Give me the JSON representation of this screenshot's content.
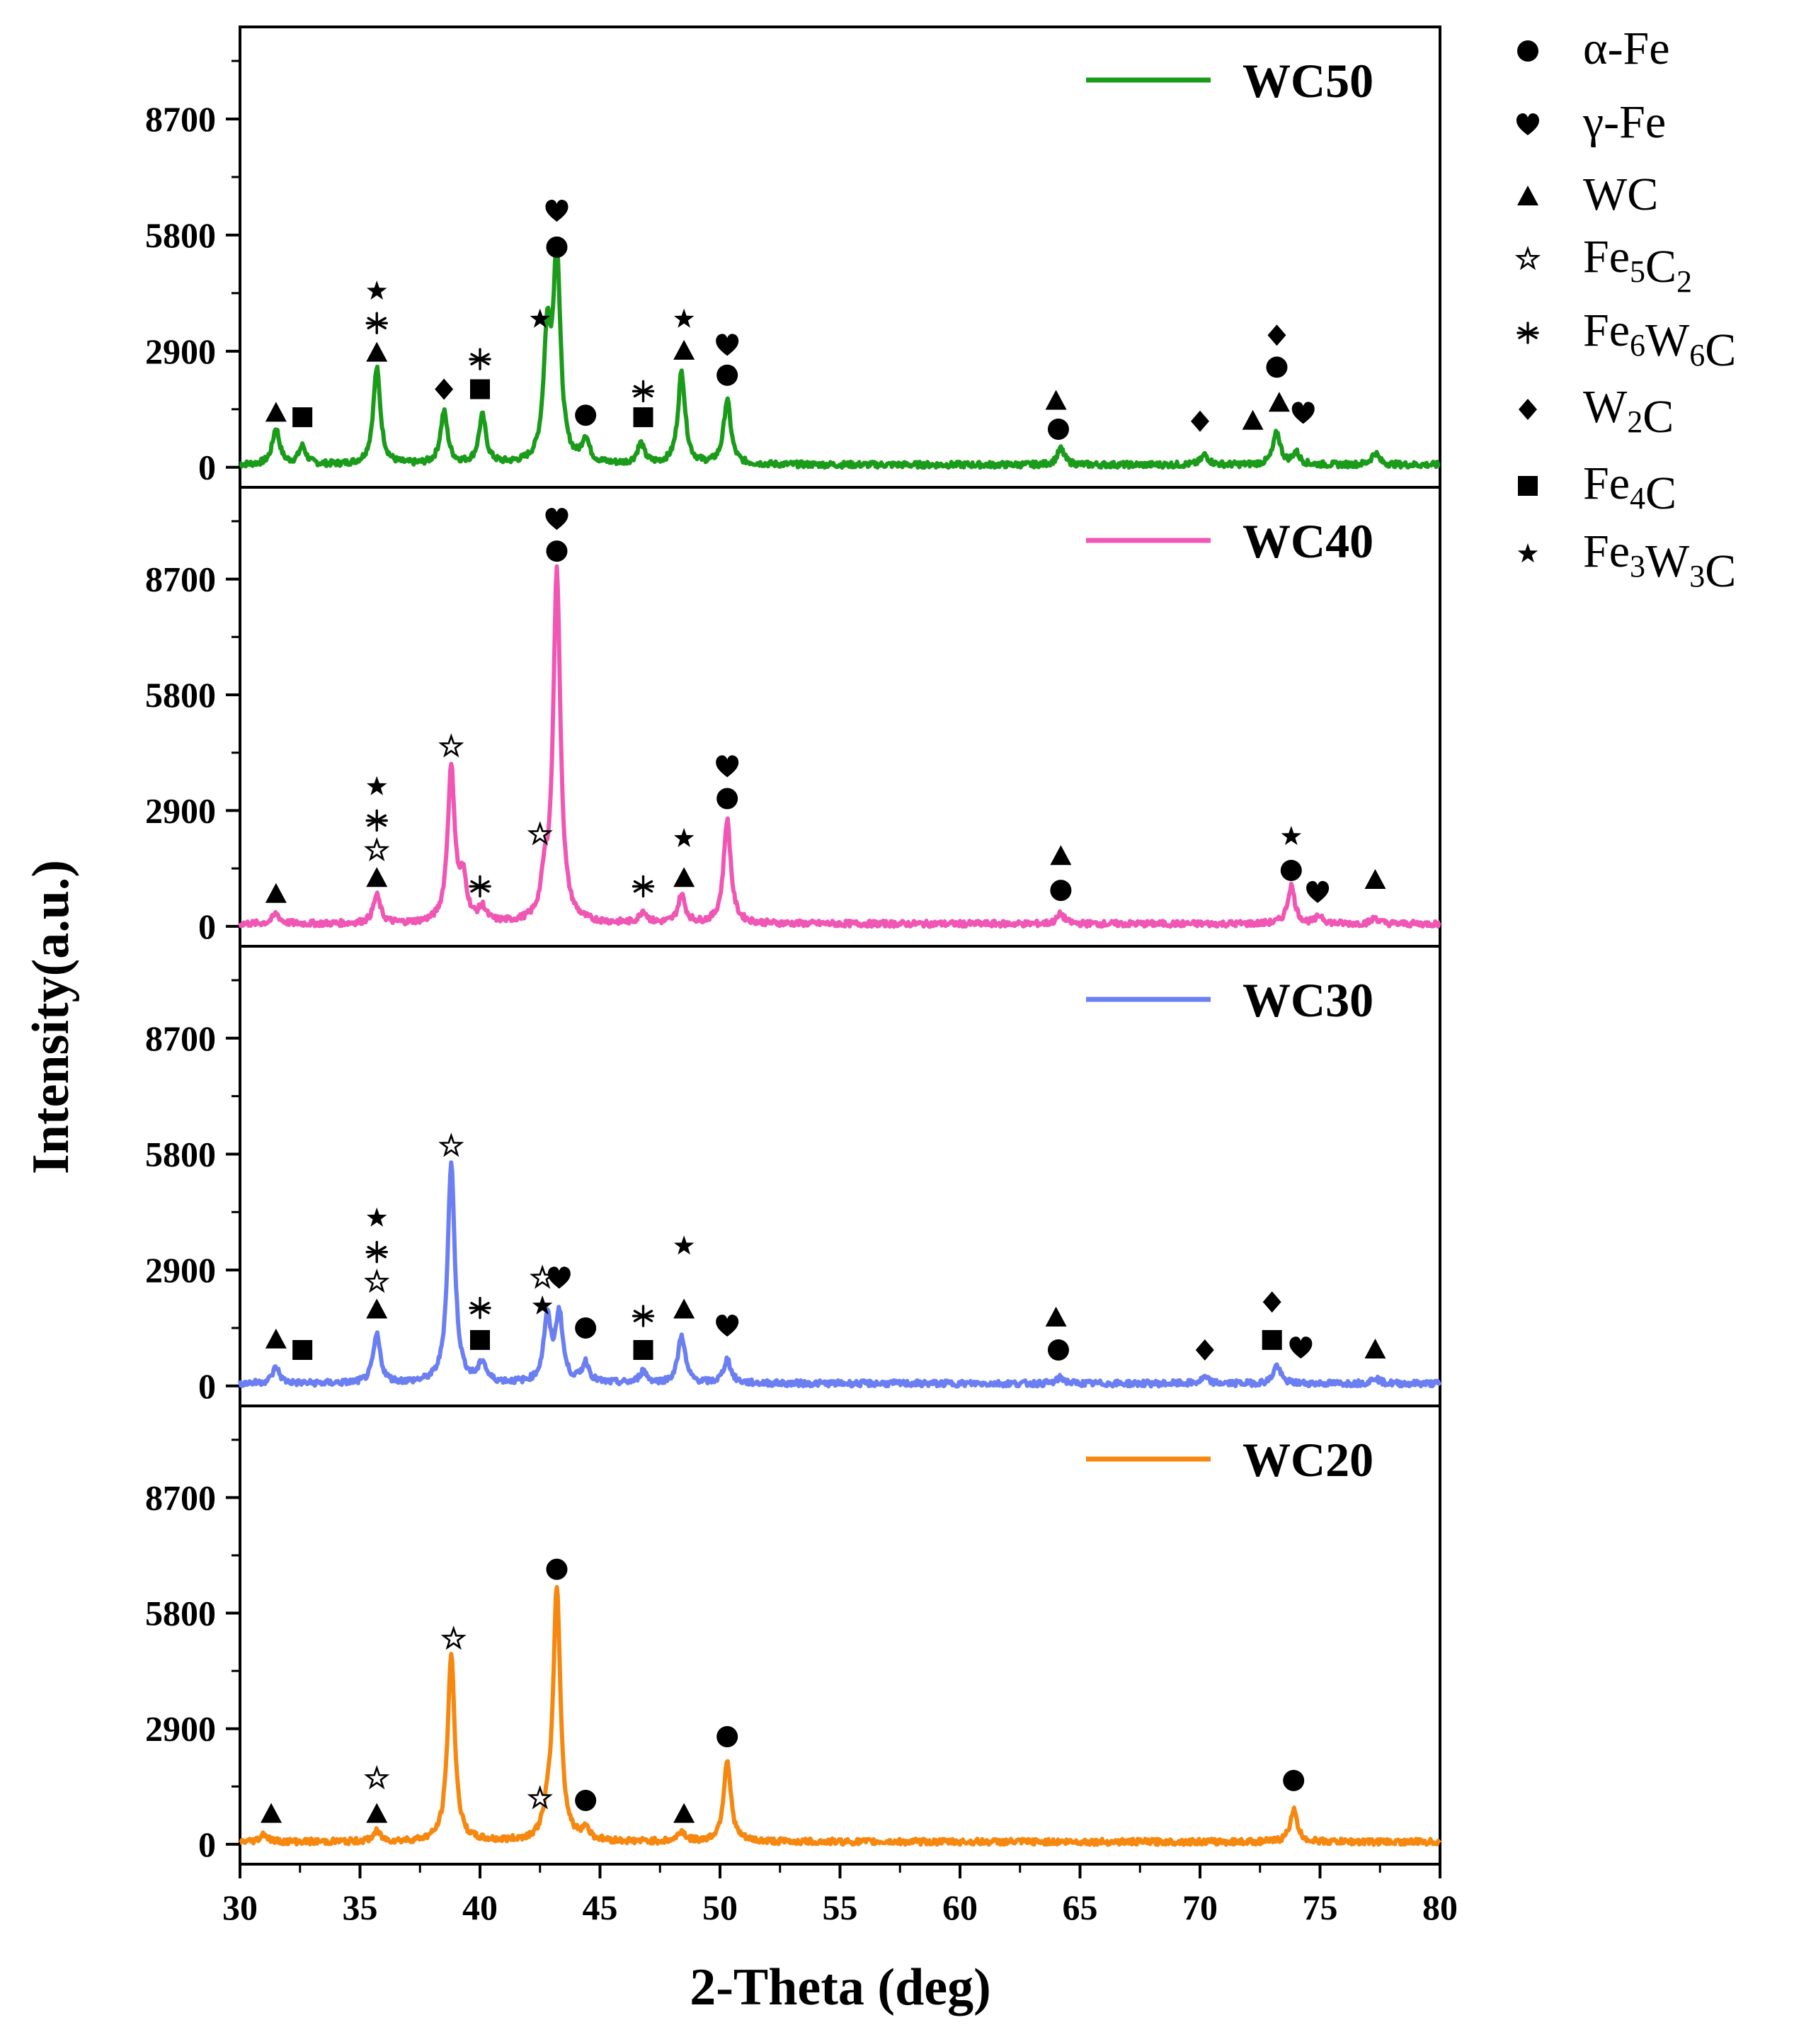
{
  "chart_data": {
    "type": "line",
    "xlabel": "2-Theta (deg)",
    "ylabel": "Intensity(a.u.)",
    "xlim": [
      30,
      80
    ],
    "x_ticks": [
      30,
      35,
      40,
      45,
      50,
      55,
      60,
      65,
      70,
      75,
      80
    ],
    "x_tick_labels": [
      "30",
      "35",
      "40",
      "45",
      "50",
      "55",
      "60",
      "65",
      "70",
      "75",
      "80"
    ],
    "ylim": [
      -500,
      11000
    ],
    "y_ticks": [
      0,
      2900,
      5800,
      8700
    ],
    "y_tick_labels": [
      "0",
      "2900",
      "5800",
      "8700"
    ],
    "phase_legend": [
      {
        "symbol": "circle",
        "base": "α-Fe",
        "sub": "",
        "tail": ""
      },
      {
        "symbol": "heart",
        "base": "γ-Fe",
        "sub": "",
        "tail": ""
      },
      {
        "symbol": "triangle",
        "base": "WC",
        "sub": "",
        "tail": ""
      },
      {
        "symbol": "star-open",
        "base": "Fe",
        "sub": "5",
        "tail": "C",
        "sub2": "2"
      },
      {
        "symbol": "asterisk",
        "base": "Fe",
        "sub": "6",
        "tail": "W",
        "sub2": "6",
        "tail2": "C"
      },
      {
        "symbol": "diamond",
        "base": "W",
        "sub": "2",
        "tail": "C"
      },
      {
        "symbol": "square",
        "base": "Fe",
        "sub": "4",
        "tail": "C"
      },
      {
        "symbol": "star-filled",
        "base": "Fe",
        "sub": "3",
        "tail": "W",
        "sub2": "3",
        "tail2": "C"
      }
    ],
    "panels": [
      {
        "name": "WC50",
        "color": "#1a9b1a",
        "baseline": 60,
        "peaks": [
          [
            31.5,
            900
          ],
          [
            32.6,
            450
          ],
          [
            35.7,
            2400
          ],
          [
            38.5,
            1300
          ],
          [
            40.1,
            1200
          ],
          [
            42.8,
            3000
          ],
          [
            43.2,
            5100
          ],
          [
            44.4,
            600
          ],
          [
            46.7,
            500
          ],
          [
            48.4,
            2300
          ],
          [
            50.3,
            1600
          ],
          [
            64.2,
            400
          ],
          [
            70.2,
            250
          ],
          [
            73.2,
            800
          ],
          [
            74.0,
            300
          ],
          [
            77.3,
            300
          ]
        ],
        "markers": [
          {
            "x": 31.5,
            "s": "triangle",
            "i": 1350
          },
          {
            "x": 32.6,
            "s": "square",
            "i": 1250
          },
          {
            "x": 35.7,
            "s": "triangle",
            "i": 2850
          },
          {
            "x": 35.7,
            "s": "asterisk",
            "i": 3600
          },
          {
            "x": 35.7,
            "s": "star-filled",
            "i": 4400
          },
          {
            "x": 38.5,
            "s": "diamond",
            "i": 1950
          },
          {
            "x": 40.0,
            "s": "square",
            "i": 1950
          },
          {
            "x": 40.0,
            "s": "asterisk",
            "i": 2700
          },
          {
            "x": 42.5,
            "s": "star-filled",
            "i": 3700
          },
          {
            "x": 43.2,
            "s": "circle",
            "i": 5500
          },
          {
            "x": 43.2,
            "s": "heart",
            "i": 6400
          },
          {
            "x": 44.4,
            "s": "circle",
            "i": 1300
          },
          {
            "x": 46.8,
            "s": "square",
            "i": 1250
          },
          {
            "x": 46.8,
            "s": "asterisk",
            "i": 1900
          },
          {
            "x": 48.5,
            "s": "triangle",
            "i": 2900
          },
          {
            "x": 48.5,
            "s": "star-filled",
            "i": 3700
          },
          {
            "x": 50.3,
            "s": "circle",
            "i": 2300
          },
          {
            "x": 50.3,
            "s": "heart",
            "i": 3050
          },
          {
            "x": 64.0,
            "s": "triangle",
            "i": 1650
          },
          {
            "x": 64.1,
            "s": "circle",
            "i": 950
          },
          {
            "x": 70.0,
            "s": "diamond",
            "i": 1150
          },
          {
            "x": 72.2,
            "s": "triangle",
            "i": 1150
          },
          {
            "x": 73.2,
            "s": "circle",
            "i": 2500
          },
          {
            "x": 73.2,
            "s": "diamond",
            "i": 3300
          },
          {
            "x": 73.3,
            "s": "triangle",
            "i": 1600
          },
          {
            "x": 74.3,
            "s": "heart",
            "i": 1350
          }
        ]
      },
      {
        "name": "WC40",
        "color": "#f056b4",
        "baseline": 60,
        "peaks": [
          [
            31.5,
            250
          ],
          [
            35.7,
            700
          ],
          [
            38.8,
            3850
          ],
          [
            39.3,
            1000
          ],
          [
            40.1,
            350
          ],
          [
            42.7,
            900
          ],
          [
            43.2,
            8800
          ],
          [
            46.8,
            300
          ],
          [
            48.4,
            700
          ],
          [
            50.3,
            2600
          ],
          [
            64.2,
            250
          ],
          [
            73.8,
            950
          ],
          [
            75.0,
            200
          ],
          [
            77.3,
            150
          ]
        ],
        "markers": [
          {
            "x": 31.5,
            "s": "triangle",
            "i": 800
          },
          {
            "x": 35.7,
            "s": "triangle",
            "i": 1200
          },
          {
            "x": 35.7,
            "s": "star-open",
            "i": 1900
          },
          {
            "x": 35.7,
            "s": "asterisk",
            "i": 2650
          },
          {
            "x": 35.7,
            "s": "star-filled",
            "i": 3500
          },
          {
            "x": 38.8,
            "s": "star-open",
            "i": 4500
          },
          {
            "x": 40.0,
            "s": "asterisk",
            "i": 1000
          },
          {
            "x": 42.5,
            "s": "star-open",
            "i": 2300
          },
          {
            "x": 43.2,
            "s": "circle",
            "i": 9400
          },
          {
            "x": 43.2,
            "s": "heart",
            "i": 10200
          },
          {
            "x": 46.8,
            "s": "asterisk",
            "i": 1000
          },
          {
            "x": 48.5,
            "s": "triangle",
            "i": 1200
          },
          {
            "x": 48.5,
            "s": "star-filled",
            "i": 2200
          },
          {
            "x": 50.3,
            "s": "circle",
            "i": 3200
          },
          {
            "x": 50.3,
            "s": "heart",
            "i": 4000
          },
          {
            "x": 64.2,
            "s": "circle",
            "i": 900
          },
          {
            "x": 64.2,
            "s": "triangle",
            "i": 1750
          },
          {
            "x": 73.8,
            "s": "circle",
            "i": 1400
          },
          {
            "x": 73.8,
            "s": "star-filled",
            "i": 2250
          },
          {
            "x": 74.9,
            "s": "heart",
            "i": 850
          },
          {
            "x": 77.3,
            "s": "triangle",
            "i": 1150
          }
        ]
      },
      {
        "name": "WC30",
        "color": "#6b7ff2",
        "baseline": 60,
        "peaks": [
          [
            31.5,
            400
          ],
          [
            35.7,
            1200
          ],
          [
            38.8,
            5500
          ],
          [
            40.1,
            500
          ],
          [
            42.8,
            1600
          ],
          [
            43.3,
            1700
          ],
          [
            44.4,
            500
          ],
          [
            46.8,
            300
          ],
          [
            48.4,
            1200
          ],
          [
            50.3,
            600
          ],
          [
            64.2,
            150
          ],
          [
            70.2,
            150
          ],
          [
            73.2,
            450
          ],
          [
            77.3,
            150
          ]
        ],
        "markers": [
          {
            "x": 31.5,
            "s": "triangle",
            "i": 1150
          },
          {
            "x": 32.6,
            "s": "square",
            "i": 900
          },
          {
            "x": 35.7,
            "s": "triangle",
            "i": 1900
          },
          {
            "x": 35.7,
            "s": "star-open",
            "i": 2600
          },
          {
            "x": 35.7,
            "s": "asterisk",
            "i": 3350
          },
          {
            "x": 35.7,
            "s": "star-filled",
            "i": 4200
          },
          {
            "x": 38.8,
            "s": "star-open",
            "i": 6000
          },
          {
            "x": 40.0,
            "s": "square",
            "i": 1150
          },
          {
            "x": 40.0,
            "s": "asterisk",
            "i": 1950
          },
          {
            "x": 42.6,
            "s": "star-filled",
            "i": 2000
          },
          {
            "x": 42.6,
            "s": "star-open",
            "i": 2700
          },
          {
            "x": 43.3,
            "s": "heart",
            "i": 2700
          },
          {
            "x": 44.4,
            "s": "circle",
            "i": 1450
          },
          {
            "x": 46.8,
            "s": "square",
            "i": 900
          },
          {
            "x": 46.8,
            "s": "asterisk",
            "i": 1750
          },
          {
            "x": 48.5,
            "s": "triangle",
            "i": 1900
          },
          {
            "x": 48.5,
            "s": "star-filled",
            "i": 3500
          },
          {
            "x": 50.3,
            "s": "heart",
            "i": 1500
          },
          {
            "x": 64.0,
            "s": "triangle",
            "i": 1700
          },
          {
            "x": 64.1,
            "s": "circle",
            "i": 900
          },
          {
            "x": 70.2,
            "s": "diamond",
            "i": 900
          },
          {
            "x": 73.0,
            "s": "diamond",
            "i": 2100
          },
          {
            "x": 73.0,
            "s": "square",
            "i": 1150
          },
          {
            "x": 74.2,
            "s": "heart",
            "i": 950
          },
          {
            "x": 77.3,
            "s": "triangle",
            "i": 900
          }
        ]
      },
      {
        "name": "WC20",
        "color": "#f6870f",
        "baseline": 60,
        "peaks": [
          [
            31.0,
            200
          ],
          [
            35.7,
            250
          ],
          [
            38.8,
            4700
          ],
          [
            42.8,
            500
          ],
          [
            43.2,
            6350
          ],
          [
            44.4,
            300
          ],
          [
            48.4,
            250
          ],
          [
            50.3,
            2050
          ],
          [
            73.9,
            800
          ]
        ],
        "markers": [
          {
            "x": 31.3,
            "s": "triangle",
            "i": 750
          },
          {
            "x": 35.7,
            "s": "triangle",
            "i": 750
          },
          {
            "x": 35.7,
            "s": "star-open",
            "i": 1650
          },
          {
            "x": 38.9,
            "s": "star-open",
            "i": 5150
          },
          {
            "x": 42.5,
            "s": "star-open",
            "i": 1150
          },
          {
            "x": 43.2,
            "s": "circle",
            "i": 6900
          },
          {
            "x": 44.4,
            "s": "circle",
            "i": 1100
          },
          {
            "x": 48.5,
            "s": "triangle",
            "i": 750
          },
          {
            "x": 50.3,
            "s": "circle",
            "i": 2700
          },
          {
            "x": 73.9,
            "s": "circle",
            "i": 1600
          }
        ]
      }
    ]
  }
}
